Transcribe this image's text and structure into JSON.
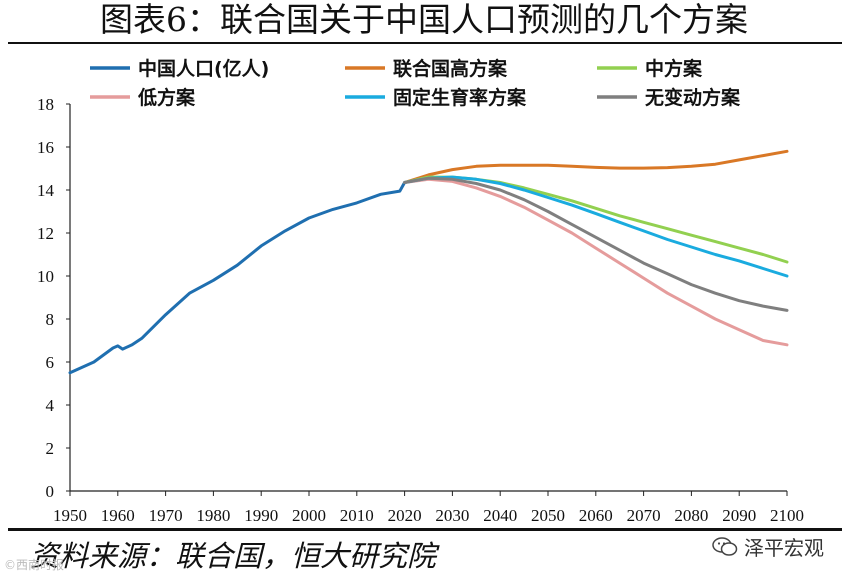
{
  "header": {
    "title": "图表6：联合国关于中国人口预测的几个方案"
  },
  "footer": {
    "source": "资料来源：联合国，恒大研究院",
    "brand": "泽平宏观",
    "watermark": "©西南时报"
  },
  "chart_data": {
    "type": "line",
    "title": "图表6：联合国关于中国人口预测的几个方案",
    "xlabel": "",
    "ylabel": "",
    "xlim": [
      1950,
      2100
    ],
    "ylim": [
      0,
      18
    ],
    "xticks": [
      1950,
      1960,
      1970,
      1980,
      1990,
      2000,
      2010,
      2020,
      2030,
      2040,
      2050,
      2060,
      2070,
      2080,
      2090,
      2100
    ],
    "yticks": [
      0,
      2,
      4,
      6,
      8,
      10,
      12,
      14,
      16,
      18
    ],
    "legend_position": "top",
    "series": [
      {
        "name": "中国人口(亿人)",
        "color": "#1f6fb0",
        "x": [
          1950,
          1955,
          1959,
          1960,
          1961,
          1963,
          1965,
          1970,
          1975,
          1980,
          1985,
          1990,
          1995,
          2000,
          2005,
          2010,
          2015,
          2019,
          2020
        ],
        "values": [
          5.5,
          6.0,
          6.65,
          6.75,
          6.6,
          6.8,
          7.1,
          8.2,
          9.2,
          9.8,
          10.5,
          11.4,
          12.1,
          12.7,
          13.1,
          13.4,
          13.8,
          13.95,
          14.35
        ]
      },
      {
        "name": "联合国高方案",
        "color": "#d97826",
        "x": [
          2020,
          2025,
          2030,
          2035,
          2040,
          2045,
          2050,
          2055,
          2060,
          2065,
          2070,
          2075,
          2080,
          2085,
          2090,
          2095,
          2100
        ],
        "values": [
          14.35,
          14.7,
          14.95,
          15.1,
          15.15,
          15.15,
          15.15,
          15.1,
          15.05,
          15.02,
          15.02,
          15.04,
          15.1,
          15.2,
          15.4,
          15.6,
          15.8
        ]
      },
      {
        "name": "中方案",
        "color": "#92d050",
        "x": [
          2020,
          2025,
          2030,
          2035,
          2040,
          2045,
          2050,
          2055,
          2060,
          2065,
          2070,
          2075,
          2080,
          2085,
          2090,
          2095,
          2100
        ],
        "values": [
          14.35,
          14.6,
          14.6,
          14.5,
          14.35,
          14.1,
          13.8,
          13.5,
          13.15,
          12.8,
          12.5,
          12.2,
          11.9,
          11.6,
          11.3,
          11.0,
          10.65
        ]
      },
      {
        "name": "低方案",
        "color": "#e59c9c",
        "x": [
          2020,
          2025,
          2030,
          2035,
          2040,
          2045,
          2050,
          2055,
          2060,
          2065,
          2070,
          2075,
          2080,
          2085,
          2090,
          2095,
          2100
        ],
        "values": [
          14.35,
          14.5,
          14.4,
          14.1,
          13.7,
          13.2,
          12.6,
          12.0,
          11.3,
          10.6,
          9.9,
          9.2,
          8.6,
          8.0,
          7.5,
          7.0,
          6.8
        ]
      },
      {
        "name": "固定生育率方案",
        "color": "#1aabdf",
        "x": [
          2020,
          2025,
          2030,
          2035,
          2040,
          2045,
          2050,
          2055,
          2060,
          2065,
          2070,
          2075,
          2080,
          2085,
          2090,
          2095,
          2100
        ],
        "values": [
          14.35,
          14.55,
          14.6,
          14.5,
          14.3,
          14.0,
          13.65,
          13.3,
          12.9,
          12.5,
          12.1,
          11.7,
          11.35,
          11.0,
          10.7,
          10.35,
          10.0
        ]
      },
      {
        "name": "无变动方案",
        "color": "#7f7f7f",
        "x": [
          2020,
          2025,
          2030,
          2035,
          2040,
          2045,
          2050,
          2055,
          2060,
          2065,
          2070,
          2075,
          2080,
          2085,
          2090,
          2095,
          2100
        ],
        "values": [
          14.35,
          14.55,
          14.5,
          14.3,
          14.0,
          13.55,
          13.0,
          12.4,
          11.8,
          11.2,
          10.6,
          10.1,
          9.6,
          9.2,
          8.85,
          8.6,
          8.4
        ]
      }
    ]
  }
}
